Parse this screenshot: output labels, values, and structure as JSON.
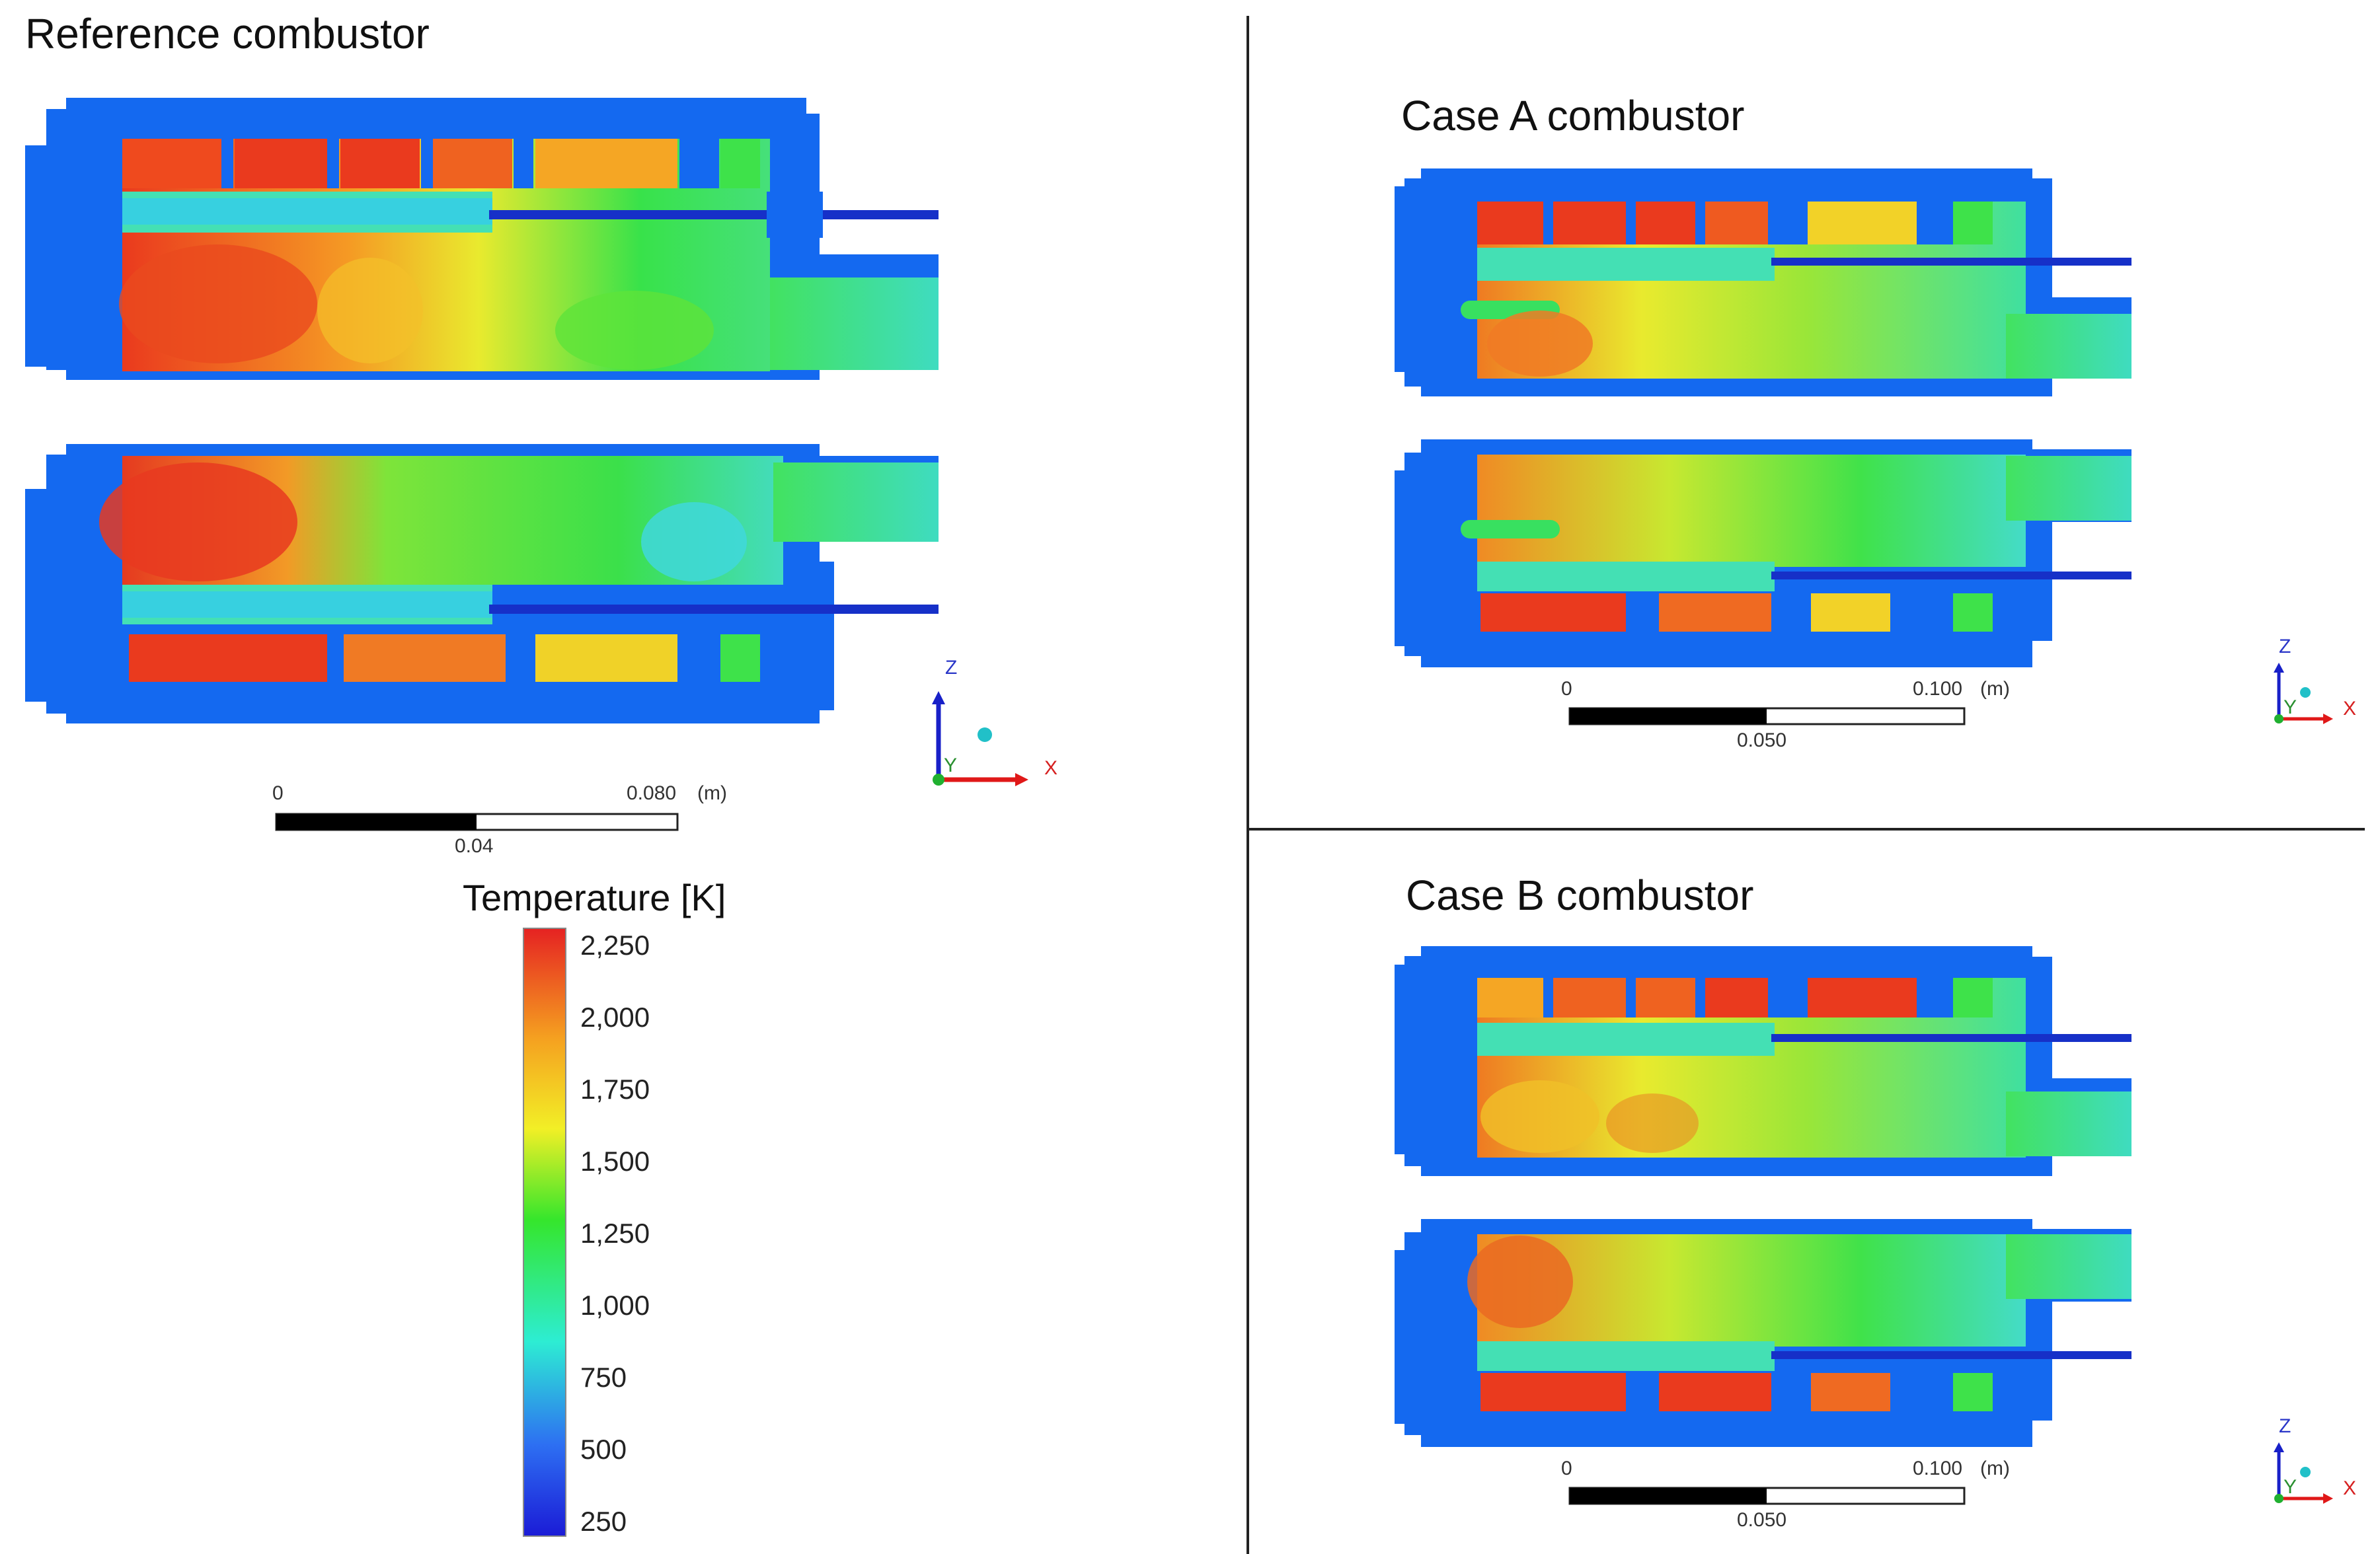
{
  "panels": {
    "reference": {
      "title": "Reference combustor"
    },
    "case_a": {
      "title": "Case A combustor"
    },
    "case_b": {
      "title": "Case B combustor"
    }
  },
  "scale_bars": {
    "reference": {
      "start": "0",
      "end": "0.080",
      "unit": "(m)",
      "mid": "0.04"
    },
    "case_a": {
      "start": "0",
      "end": "0.100",
      "unit": "(m)",
      "mid": "0.050"
    },
    "case_b": {
      "start": "0",
      "end": "0.100",
      "unit": "(m)",
      "mid": "0.050"
    }
  },
  "axes_triad": {
    "z": "Z",
    "x": "X",
    "y": "Y"
  },
  "legend": {
    "title": "Temperature [K]",
    "ticks": [
      "2,250",
      "2,000",
      "1,750",
      "1,500",
      "1,250",
      "1,000",
      "750",
      "500",
      "250"
    ],
    "colors": [
      "#e52222",
      "#f5a020",
      "#f2ef26",
      "#35e62c",
      "#2dedd3",
      "#2d6ff2",
      "#1b1bd6"
    ]
  },
  "colors": {
    "wall": "#1469f0",
    "hot": "#ea3a1e",
    "warm": "#f59a24",
    "yellow": "#e9ea2e",
    "green": "#38e24a",
    "cyan": "#3fe0c8",
    "fuel_line": "#1630c8"
  }
}
